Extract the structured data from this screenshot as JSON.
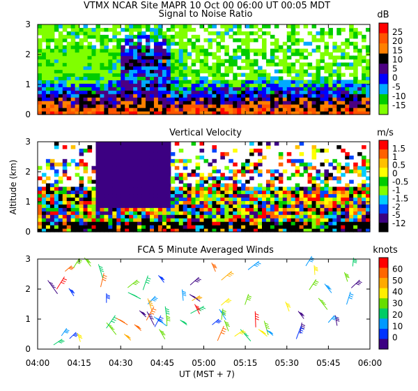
{
  "header": {
    "title_line1": "VTMX   NCAR Site   MAPR 10 Oct 00   06:00 UT   00:05   MDT"
  },
  "xaxis": {
    "label": "UT   (MST + 7)",
    "ticks": [
      "04:00",
      "04:15",
      "04:30",
      "04:45",
      "05:00",
      "05:15",
      "05:30",
      "05:45",
      "06:00"
    ],
    "range_minutes": [
      240,
      360
    ]
  },
  "ylabel": "Altitude (km)",
  "chart_data": [
    {
      "type": "heatmap",
      "title": "Signal to Noise Ratio",
      "ylim": [
        0,
        3
      ],
      "yticks": [
        "0",
        "1",
        "2",
        "3"
      ],
      "colorbar": {
        "unit": "dB",
        "levels": [
          "25",
          "20",
          "15",
          "10",
          "5",
          "0",
          "-5",
          "-10",
          "-15"
        ],
        "colors": [
          "#ff0000",
          "#ff5500",
          "#ff8000",
          "#000000",
          "#4b0082",
          "#0000ff",
          "#00aaff",
          "#00cc00",
          "#80ff00"
        ]
      }
    },
    {
      "type": "heatmap",
      "title": "Vertical Velocity",
      "ylim": [
        0,
        3
      ],
      "yticks": [
        "0",
        "1",
        "2",
        "3"
      ],
      "colorbar": {
        "unit": "m/s",
        "levels": [
          "1.5",
          "1",
          "0.5",
          "0",
          "-0.5",
          "-1",
          "-1.5",
          "-2",
          "-5",
          "-12"
        ],
        "colors": [
          "#ff0000",
          "#ff6000",
          "#ffc000",
          "#ffff00",
          "#00cc00",
          "#80ff00",
          "#00ccff",
          "#0044ff",
          "#3c0082",
          "#000000"
        ]
      }
    },
    {
      "type": "scatter",
      "title": "FCA 5 Minute Averaged Winds",
      "ylim": [
        0,
        3
      ],
      "yticks": [
        "0",
        "1",
        "2",
        "3"
      ],
      "colorbar": {
        "unit": "knots",
        "levels": [
          "60",
          "50",
          "40",
          "30",
          "20",
          "10",
          "0"
        ],
        "colors": [
          "#ff0000",
          "#ff6600",
          "#ffaa00",
          "#ffee00",
          "#66dd00",
          "#00cc66",
          "#0099ff",
          "#0033ff",
          "#3c0082"
        ]
      }
    }
  ]
}
